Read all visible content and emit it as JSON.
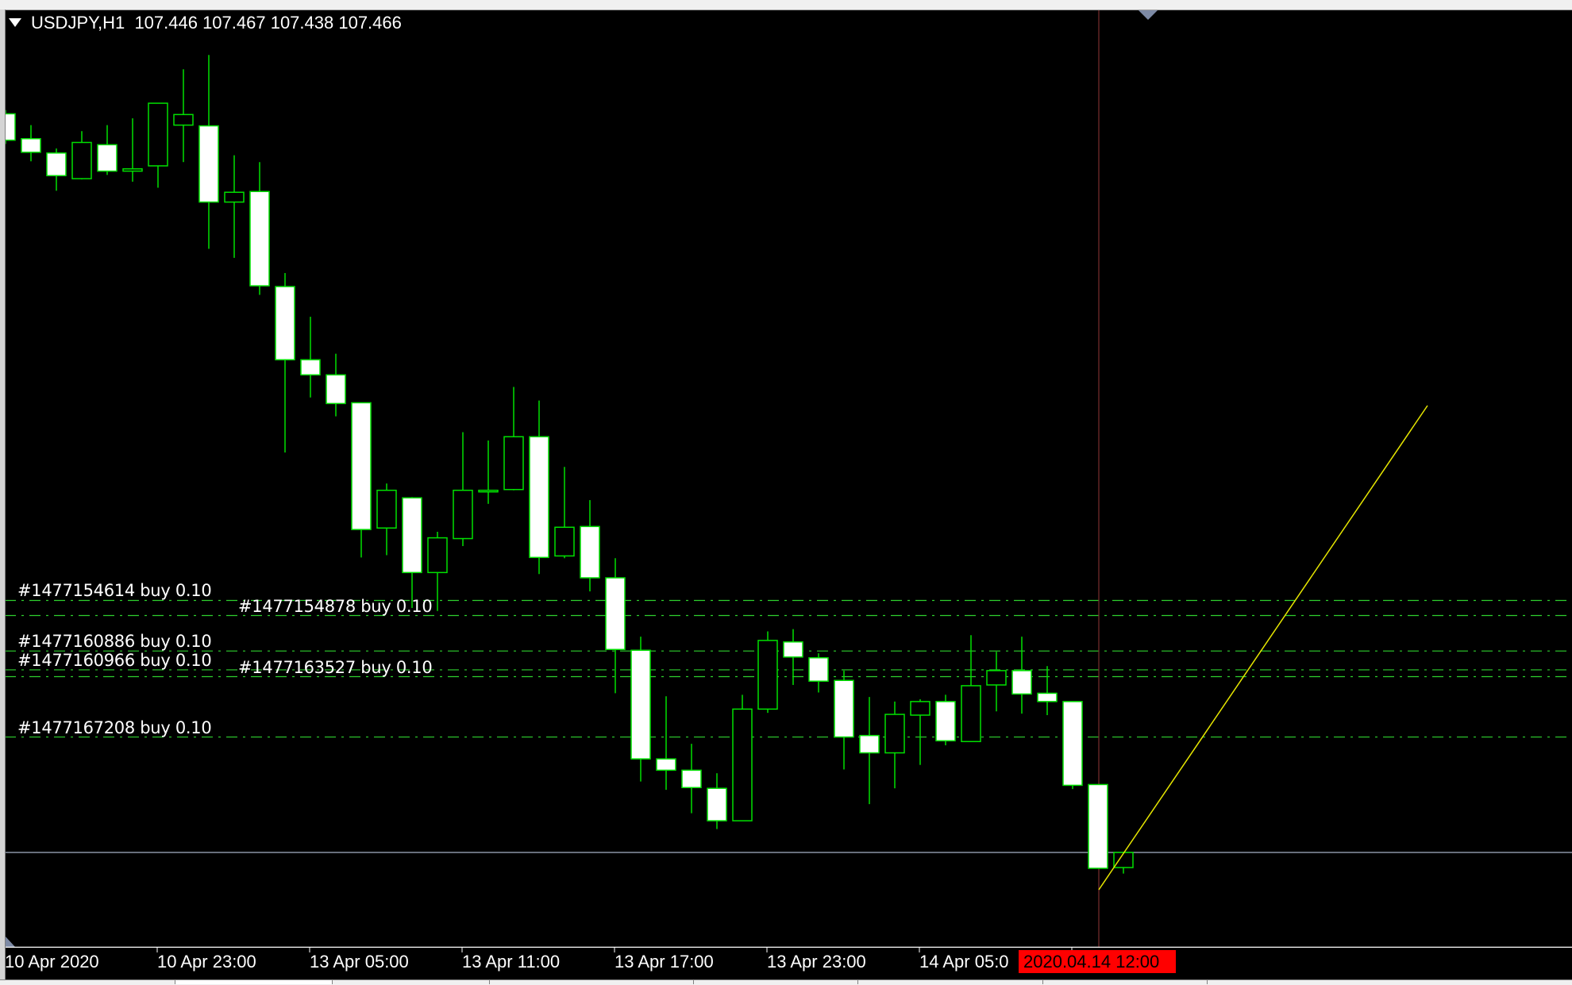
{
  "header": {
    "symbol_timeframe": "USDJPY,H1",
    "ohlc_text": "107.446 107.467 107.438 107.466"
  },
  "colors": {
    "background": "#000000",
    "candle_outline": "#00e000",
    "bear_body": "#ffffff",
    "bull_body": "#000000",
    "order_line": "#2ed02e",
    "bid_line": "#8a94a6",
    "trendline": "#e6e600",
    "crosshair": "#c01010",
    "crosshair_label_bg": "#ff0000"
  },
  "chart_data": {
    "type": "candlestick",
    "symbol": "USDJPY",
    "timeframe": "H1",
    "bid": 107.466,
    "x_tick_labels": [
      "10 Apr 2020",
      "10 Apr 23:00",
      "13 Apr 05:00",
      "13 Apr 11:00",
      "13 Apr 17:00",
      "13 Apr 23:00",
      "14 Apr 05:0"
    ],
    "crosshair_time": "2020.04.14 12:00",
    "candles_ohlc": [
      [
        108.445,
        108.45,
        108.405,
        108.41
      ],
      [
        108.412,
        108.43,
        108.382,
        108.394
      ],
      [
        108.393,
        108.399,
        108.343,
        108.363
      ],
      [
        108.359,
        108.422,
        108.358,
        108.407
      ],
      [
        108.404,
        108.43,
        108.364,
        108.369
      ],
      [
        108.369,
        108.439,
        108.355,
        108.372
      ],
      [
        108.376,
        108.459,
        108.347,
        108.459
      ],
      [
        108.43,
        108.504,
        108.381,
        108.444
      ],
      [
        108.429,
        108.523,
        108.266,
        108.328
      ],
      [
        108.328,
        108.39,
        108.254,
        108.341
      ],
      [
        108.342,
        108.381,
        108.205,
        108.217
      ],
      [
        108.216,
        108.234,
        107.996,
        108.119
      ],
      [
        108.119,
        108.176,
        108.069,
        108.099
      ],
      [
        108.099,
        108.127,
        108.044,
        108.061
      ],
      [
        108.062,
        108.062,
        107.857,
        107.894
      ],
      [
        107.896,
        107.955,
        107.86,
        107.946
      ],
      [
        107.936,
        107.937,
        107.79,
        107.837
      ],
      [
        107.837,
        107.891,
        107.786,
        107.883
      ],
      [
        107.882,
        108.023,
        107.872,
        107.946
      ],
      [
        107.946,
        108.012,
        107.928,
        107.946
      ],
      [
        107.947,
        108.083,
        107.946,
        108.017
      ],
      [
        108.017,
        108.065,
        107.835,
        107.857
      ],
      [
        107.859,
        107.977,
        107.856,
        107.897
      ],
      [
        107.898,
        107.933,
        107.812,
        107.83
      ],
      [
        107.83,
        107.856,
        107.677,
        107.735
      ],
      [
        107.734,
        107.752,
        107.56,
        107.59
      ],
      [
        107.59,
        107.673,
        107.549,
        107.575
      ],
      [
        107.575,
        107.61,
        107.518,
        107.552
      ],
      [
        107.551,
        107.571,
        107.497,
        107.508
      ],
      [
        107.508,
        107.675,
        107.508,
        107.656
      ],
      [
        107.656,
        107.759,
        107.651,
        107.747
      ],
      [
        107.745,
        107.762,
        107.688,
        107.725
      ],
      [
        107.724,
        107.73,
        107.678,
        107.693
      ],
      [
        107.694,
        107.707,
        107.576,
        107.619
      ],
      [
        107.621,
        107.672,
        107.53,
        107.598
      ],
      [
        107.598,
        107.666,
        107.551,
        107.649
      ],
      [
        107.648,
        107.669,
        107.582,
        107.666
      ],
      [
        107.666,
        107.675,
        107.608,
        107.614
      ],
      [
        107.613,
        107.754,
        107.613,
        107.687
      ],
      [
        107.688,
        107.732,
        107.653,
        107.707
      ],
      [
        107.707,
        107.752,
        107.65,
        107.676
      ],
      [
        107.677,
        107.713,
        107.648,
        107.666
      ],
      [
        107.666,
        107.666,
        107.55,
        107.555
      ],
      [
        107.556,
        107.556,
        107.445,
        107.445
      ],
      [
        107.446,
        107.467,
        107.438,
        107.466
      ]
    ],
    "orders": [
      {
        "label": "#1477154614 buy 0.10",
        "price": 107.8
      },
      {
        "label": "#1477154878 buy 0.10",
        "price": 107.78
      },
      {
        "label": "#1477160886 buy 0.10",
        "price": 107.733
      },
      {
        "label": "#1477160966 buy 0.10",
        "price": 107.708
      },
      {
        "label": "#1477163527 buy 0.10",
        "price": 107.699
      },
      {
        "label": "#1477167208 buy 0.10",
        "price": 107.619
      }
    ],
    "grid": false,
    "legend": "none"
  }
}
